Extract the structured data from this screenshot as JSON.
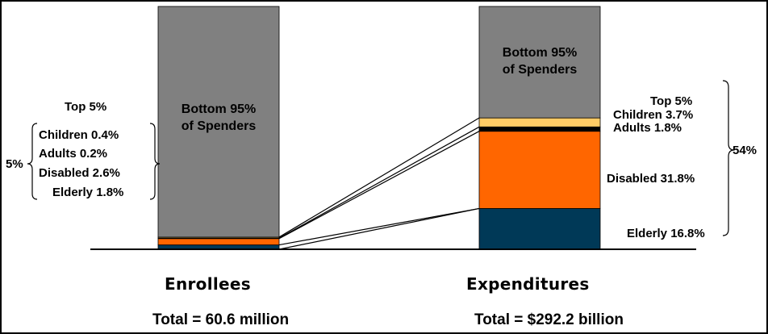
{
  "chart_data": {
    "type": "bar",
    "stacked": true,
    "categories": [
      "Enrollees",
      "Expenditures"
    ],
    "series": [
      {
        "name": "Elderly",
        "values": [
          1.8,
          16.8
        ],
        "color": "#003957"
      },
      {
        "name": "Disabled",
        "values": [
          2.6,
          31.8
        ],
        "color": "#FF6600"
      },
      {
        "name": "Adults",
        "values": [
          0.2,
          1.8
        ],
        "color": "#000000"
      },
      {
        "name": "Children",
        "values": [
          0.4,
          3.7
        ],
        "color": "#FFCC66"
      },
      {
        "name": "Bottom 95% of Spenders",
        "values": [
          95,
          45.9
        ],
        "color": "#808080"
      }
    ],
    "ylim": [
      0,
      100
    ],
    "totals": [
      "Total = 60.6 million",
      "Total = $292.2 billion"
    ]
  },
  "labels": {
    "bottom95_line1": "Bottom 95%",
    "bottom95_line2": "of Spenders",
    "left": {
      "top5": "Top 5%",
      "children": "Children 0.4%",
      "adults": "Adults 0.2%",
      "disabled": "Disabled 2.6%",
      "elderly": "Elderly 1.8%",
      "bracket": "5%"
    },
    "right": {
      "top5": "Top 5%",
      "children": "Children 3.7%",
      "adults": "Adults 1.8%",
      "disabled": "Disabled 31.8%",
      "elderly": "Elderly 16.8%",
      "bracket": "54%"
    },
    "x_enrollees": "Enrollees",
    "x_expenditures": "Expenditures",
    "total_enrollees": "Total = 60.6 million",
    "total_expenditures": "Total = $292.2 billion"
  },
  "colors": {
    "bottom95": "#808080",
    "children": "#FFCC66",
    "adults": "#000000",
    "disabled": "#FF6600",
    "elderly": "#003957"
  }
}
